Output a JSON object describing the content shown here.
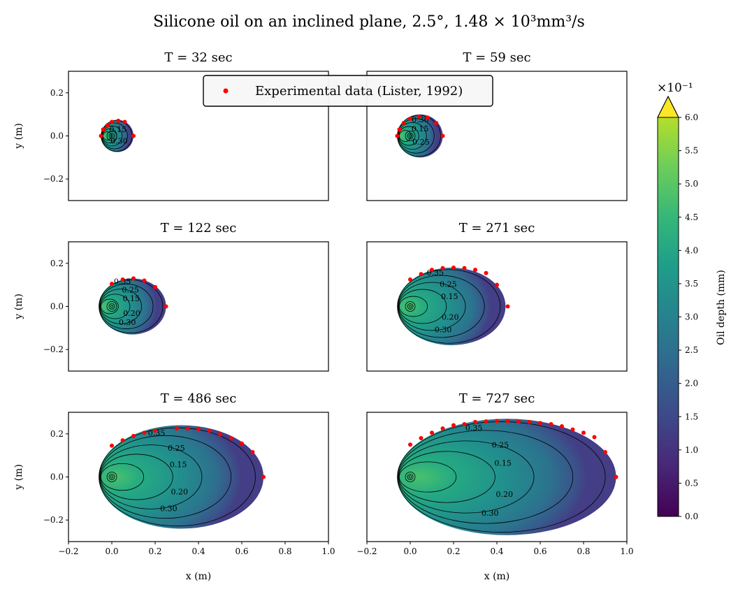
{
  "title": "Silicone oil on an inclined plane, 2.5°, 1.48 × 10³mm³/s",
  "legend": {
    "label": "Experimental data (Lister, 1992)",
    "placement": "top-center"
  },
  "colorbar": {
    "label": "Oil depth (mm)",
    "multiplier": "×10⁻¹",
    "ticks": [
      "0.0",
      "0.5",
      "1.0",
      "1.5",
      "2.0",
      "2.5",
      "3.0",
      "3.5",
      "4.0",
      "4.5",
      "5.0",
      "5.5",
      "6.0"
    ],
    "extend": "max",
    "colormap": "viridis"
  },
  "chart_data": [
    {
      "type": "contour",
      "title": "T = 32 sec",
      "xlim": [
        -0.2,
        1.0
      ],
      "ylim": [
        -0.3,
        0.3
      ],
      "xlabel": "",
      "ylabel": "y (m)",
      "xticks": [],
      "yticks": [
        "−0.2",
        "0.0",
        "0.2"
      ],
      "contour_levels": [
        "0.15",
        "0.30"
      ],
      "front": {
        "x_min": -0.05,
        "x_max": 0.1,
        "y_half": 0.075
      },
      "experimental": [
        {
          "x": -0.05,
          "y": 0.0
        },
        {
          "x": -0.04,
          "y": 0.03
        },
        {
          "x": -0.02,
          "y": 0.05
        },
        {
          "x": 0.0,
          "y": 0.065
        },
        {
          "x": 0.03,
          "y": 0.07
        },
        {
          "x": 0.06,
          "y": 0.065
        },
        {
          "x": 0.1,
          "y": 0.0
        }
      ]
    },
    {
      "type": "contour",
      "title": "T = 59 sec",
      "xlim": [
        -0.2,
        1.0
      ],
      "ylim": [
        -0.3,
        0.3
      ],
      "xlabel": "",
      "ylabel": "",
      "xticks": [],
      "yticks": [],
      "contour_levels": [
        "0.15",
        "0.25",
        "0.30"
      ],
      "front": {
        "x_min": -0.06,
        "x_max": 0.15,
        "y_half": 0.1
      },
      "experimental": [
        {
          "x": -0.06,
          "y": 0.0
        },
        {
          "x": -0.05,
          "y": 0.03
        },
        {
          "x": -0.03,
          "y": 0.06
        },
        {
          "x": 0.0,
          "y": 0.08
        },
        {
          "x": 0.04,
          "y": 0.09
        },
        {
          "x": 0.08,
          "y": 0.085
        },
        {
          "x": 0.12,
          "y": 0.06
        },
        {
          "x": 0.15,
          "y": 0.0
        }
      ]
    },
    {
      "type": "contour",
      "title": "T = 122 sec",
      "xlim": [
        -0.2,
        1.0
      ],
      "ylim": [
        -0.3,
        0.3
      ],
      "xlabel": "",
      "ylabel": "y (m)",
      "xticks": [],
      "yticks": [
        "−0.2",
        "0.0",
        "0.2"
      ],
      "contour_levels": [
        "0.15",
        "0.20",
        "0.25",
        "0.30",
        "0.35"
      ],
      "front": {
        "x_min": -0.06,
        "x_max": 0.25,
        "y_half": 0.13
      },
      "experimental": [
        {
          "x": 0.0,
          "y": 0.105
        },
        {
          "x": 0.05,
          "y": 0.125
        },
        {
          "x": 0.1,
          "y": 0.13
        },
        {
          "x": 0.15,
          "y": 0.12
        },
        {
          "x": 0.2,
          "y": 0.09
        },
        {
          "x": 0.25,
          "y": 0.0
        }
      ]
    },
    {
      "type": "contour",
      "title": "T = 271 sec",
      "xlim": [
        -0.2,
        1.0
      ],
      "ylim": [
        -0.3,
        0.3
      ],
      "xlabel": "",
      "ylabel": "",
      "xticks": [],
      "yticks": [],
      "contour_levels": [
        "0.15",
        "0.20",
        "0.25",
        "0.30",
        "0.35"
      ],
      "front": {
        "x_min": -0.06,
        "x_max": 0.44,
        "y_half": 0.18
      },
      "experimental": [
        {
          "x": 0.0,
          "y": 0.125
        },
        {
          "x": 0.05,
          "y": 0.15
        },
        {
          "x": 0.1,
          "y": 0.17
        },
        {
          "x": 0.15,
          "y": 0.178
        },
        {
          "x": 0.2,
          "y": 0.18
        },
        {
          "x": 0.25,
          "y": 0.178
        },
        {
          "x": 0.3,
          "y": 0.17
        },
        {
          "x": 0.35,
          "y": 0.155
        },
        {
          "x": 0.4,
          "y": 0.1
        },
        {
          "x": 0.45,
          "y": 0.0
        }
      ]
    },
    {
      "type": "contour",
      "title": "T = 486 sec",
      "xlim": [
        -0.2,
        1.0
      ],
      "ylim": [
        -0.3,
        0.3
      ],
      "xlabel": "x (m)",
      "ylabel": "y (m)",
      "xticks": [
        "−0.2",
        "0.0",
        "0.2",
        "0.4",
        "0.6",
        "0.8",
        "1.0"
      ],
      "yticks": [
        "−0.2",
        "0.0",
        "0.2"
      ],
      "contour_levels": [
        "0.15",
        "0.20",
        "0.25",
        "0.30",
        "0.35"
      ],
      "front": {
        "x_min": -0.06,
        "x_max": 0.7,
        "y_half": 0.24
      },
      "experimental": [
        {
          "x": 0.0,
          "y": 0.145
        },
        {
          "x": 0.05,
          "y": 0.17
        },
        {
          "x": 0.1,
          "y": 0.19
        },
        {
          "x": 0.15,
          "y": 0.205
        },
        {
          "x": 0.2,
          "y": 0.215
        },
        {
          "x": 0.3,
          "y": 0.225
        },
        {
          "x": 0.35,
          "y": 0.225
        },
        {
          "x": 0.4,
          "y": 0.222
        },
        {
          "x": 0.45,
          "y": 0.215
        },
        {
          "x": 0.5,
          "y": 0.198
        },
        {
          "x": 0.55,
          "y": 0.18
        },
        {
          "x": 0.6,
          "y": 0.155
        },
        {
          "x": 0.65,
          "y": 0.115
        },
        {
          "x": 0.7,
          "y": 0.0
        }
      ]
    },
    {
      "type": "contour",
      "title": "T = 727 sec",
      "xlim": [
        -0.2,
        1.0
      ],
      "ylim": [
        -0.3,
        0.3
      ],
      "xlabel": "x (m)",
      "ylabel": "",
      "xticks": [
        "−0.2",
        "0.0",
        "0.2",
        "0.4",
        "0.6",
        "0.8",
        "1.0"
      ],
      "yticks": [],
      "contour_levels": [
        "0.15",
        "0.20",
        "0.25",
        "0.30",
        "0.35"
      ],
      "front": {
        "x_min": -0.06,
        "x_max": 0.95,
        "y_half": 0.27
      },
      "experimental": [
        {
          "x": 0.0,
          "y": 0.15
        },
        {
          "x": 0.05,
          "y": 0.18
        },
        {
          "x": 0.1,
          "y": 0.205
        },
        {
          "x": 0.15,
          "y": 0.225
        },
        {
          "x": 0.2,
          "y": 0.24
        },
        {
          "x": 0.25,
          "y": 0.245
        },
        {
          "x": 0.3,
          "y": 0.255
        },
        {
          "x": 0.35,
          "y": 0.258
        },
        {
          "x": 0.4,
          "y": 0.26
        },
        {
          "x": 0.45,
          "y": 0.26
        },
        {
          "x": 0.5,
          "y": 0.258
        },
        {
          "x": 0.55,
          "y": 0.255
        },
        {
          "x": 0.6,
          "y": 0.25
        },
        {
          "x": 0.65,
          "y": 0.245
        },
        {
          "x": 0.7,
          "y": 0.235
        },
        {
          "x": 0.75,
          "y": 0.22
        },
        {
          "x": 0.8,
          "y": 0.205
        },
        {
          "x": 0.85,
          "y": 0.185
        },
        {
          "x": 0.9,
          "y": 0.115
        },
        {
          "x": 0.95,
          "y": 0.0
        }
      ]
    }
  ]
}
